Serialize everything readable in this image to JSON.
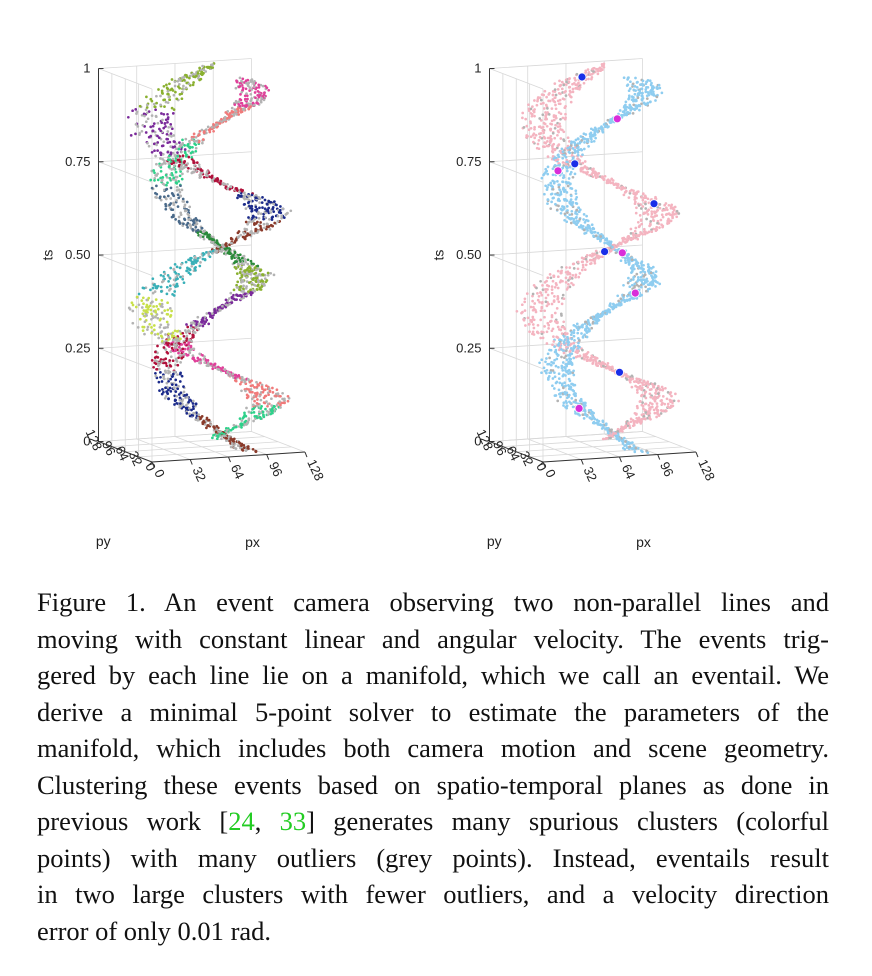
{
  "figure": {
    "panels": [
      {
        "id": "left",
        "description_key": "spurious-clusters"
      },
      {
        "id": "right",
        "description_key": "eventails"
      }
    ],
    "axes": {
      "z_label": "ts",
      "x_label": "px",
      "y_label": "py",
      "z_ticks": [
        "0",
        "0.25",
        "0.50",
        "0.75",
        "1"
      ],
      "px_ticks": [
        "0",
        "32",
        "64",
        "96",
        "128"
      ],
      "py_ticks": [
        "128",
        "96",
        "64",
        "32",
        "0"
      ]
    },
    "colors": {
      "outlier_grey": "#b3b3b3",
      "cluster_pink": "#f4b4c0",
      "cluster_blue": "#8fcdf0",
      "marker_blue": "#1a2ee8",
      "marker_magenta": "#d92ed9",
      "green": "#2ed18a",
      "salmon": "#f07a7a",
      "magenta": "#e0409a",
      "yellow": "#c8e04a",
      "teal": "#3ab0b8",
      "brown": "#8a3a2a",
      "navy": "#1b2a8a",
      "crimson": "#b0103a",
      "purple": "#7a2a9a",
      "olive": "#8ab030",
      "forest": "#2a8a3a",
      "steel": "#4a6a8a"
    }
  },
  "caption": {
    "lines": [
      "Figure 1. An event camera observing two non-parallel lines and",
      "moving with constant linear and angular velocity. The events trig-",
      "gered by each line lie on a manifold, which we call an eventail. We",
      "derive a minimal 5-point solver to estimate the parameters of the",
      "manifold, which includes both camera motion and scene geometry.",
      "Clustering these events based on spatio-temporal planes as done in"
    ],
    "line7_before": "previous work [",
    "cite1": "24",
    "cite_sep": ", ",
    "cite2": "33",
    "line7_after": "] generates many spurious clusters (colorful",
    "lines_tail": [
      "points) with many outliers (grey points). Instead, eventails result",
      "in two large clusters with fewer outliers, and a velocity direction"
    ],
    "last_line_before": "error of only 0.01 ",
    "last_line_unit": "rad."
  }
}
